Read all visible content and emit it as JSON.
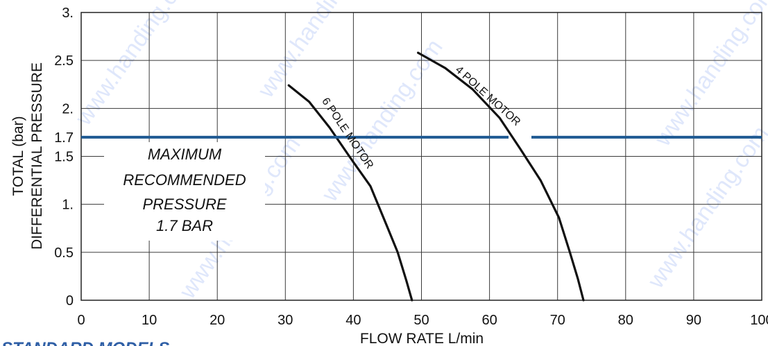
{
  "chart_data": {
    "type": "line",
    "xlabel": "FLOW RATE L/min",
    "ylabel_lines": [
      "TOTAL (bar)",
      "DIFFERENTIAL PRESSURE"
    ],
    "xlim": [
      0,
      100
    ],
    "ylim": [
      0,
      3
    ],
    "grid": true,
    "x_ticks": [
      "0",
      "10",
      "20",
      "30",
      "40",
      "50",
      "60",
      "70",
      "80",
      "90",
      "100"
    ],
    "y_ticks": [
      {
        "value": 0,
        "label": "0"
      },
      {
        "value": 0.5,
        "label": "0.5"
      },
      {
        "value": 1,
        "label": "1."
      },
      {
        "value": 1.5,
        "label": "1.5"
      },
      {
        "value": 1.7,
        "label": "1.7"
      },
      {
        "value": 2,
        "label": "2."
      },
      {
        "value": 2.5,
        "label": "2.5"
      },
      {
        "value": 3,
        "label": "3."
      }
    ],
    "series": [
      {
        "name": "6 POLE MOTOR",
        "points": [
          [
            30.5,
            2.24
          ],
          [
            33.5,
            2.07
          ],
          [
            36.5,
            1.8
          ],
          [
            39.5,
            1.49
          ],
          [
            42.5,
            1.19
          ],
          [
            45.0,
            0.76
          ],
          [
            46.5,
            0.5
          ],
          [
            47.8,
            0.2
          ],
          [
            48.6,
            0.0
          ]
        ]
      },
      {
        "name": "4 POLE MOTOR",
        "points": [
          [
            49.5,
            2.58
          ],
          [
            53.5,
            2.42
          ],
          [
            57.5,
            2.2
          ],
          [
            61.5,
            1.9
          ],
          [
            64.5,
            1.58
          ],
          [
            67.5,
            1.25
          ],
          [
            70.2,
            0.86
          ],
          [
            71.8,
            0.5
          ],
          [
            73.0,
            0.22
          ],
          [
            73.8,
            0.0
          ]
        ]
      }
    ],
    "reference_line": {
      "value": 1.7,
      "color": "#1f5a93",
      "note_lines": [
        "MAXIMUM",
        "RECOMMENDED",
        "PRESSURE",
        "1.7 BAR"
      ]
    },
    "footer_text": "STANDARD MODELS",
    "watermark": "www.handing.com"
  }
}
